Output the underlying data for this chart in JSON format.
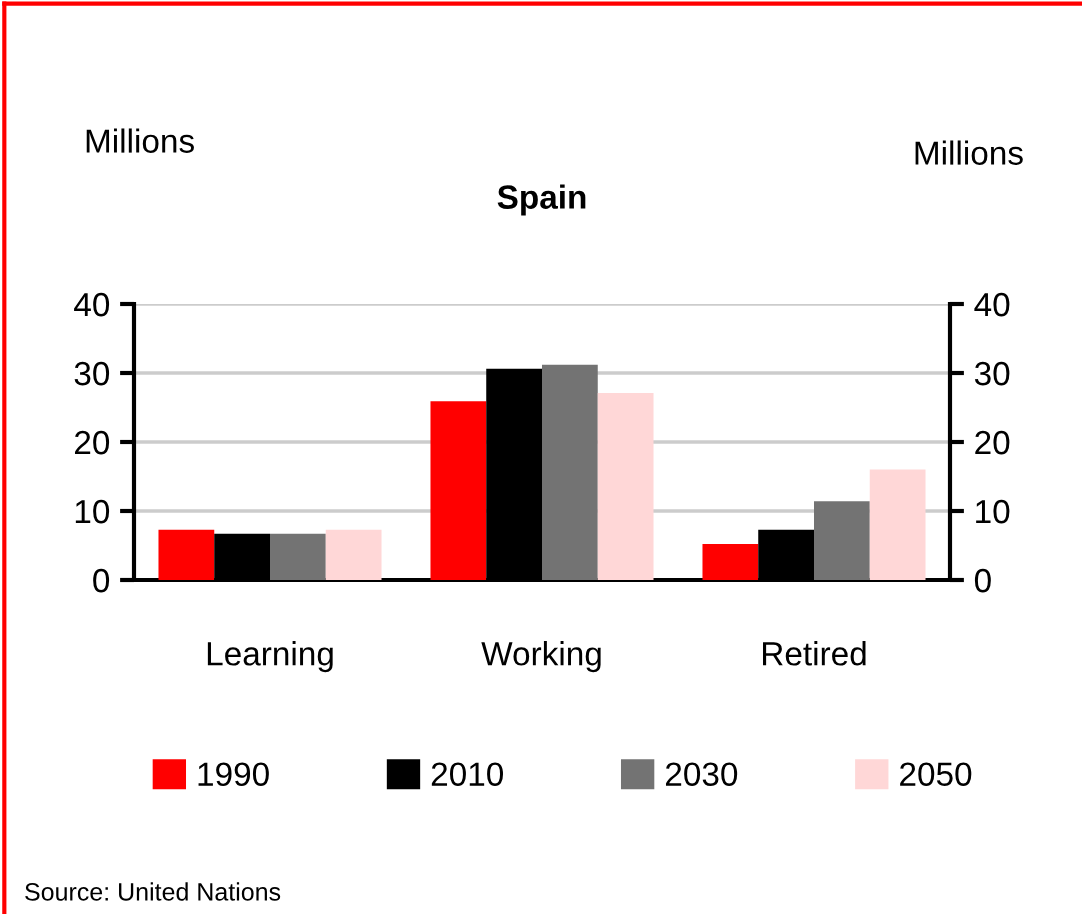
{
  "chart_data": {
    "type": "bar",
    "title": "Spain",
    "ylabel": "Millions",
    "y2label": "Millions",
    "categories": [
      "Learning",
      "Working",
      "Retired"
    ],
    "series": [
      {
        "name": "1990",
        "color": "#ff0000",
        "values": [
          7.3,
          25.9,
          5.2
        ]
      },
      {
        "name": "2010",
        "color": "#000000",
        "values": [
          6.7,
          30.6,
          7.3
        ]
      },
      {
        "name": "2030",
        "color": "#737373",
        "values": [
          6.7,
          31.2,
          11.4
        ]
      },
      {
        "name": "2050",
        "color": "#ffd7d7",
        "values": [
          7.3,
          27.1,
          16.0
        ]
      }
    ],
    "ylim": [
      0,
      40
    ],
    "yticks": [
      0,
      10,
      20,
      30,
      40
    ],
    "y2lim": [
      0,
      40
    ],
    "y2ticks": [
      0,
      10,
      20,
      30,
      40
    ],
    "grid": "y",
    "legend": "bottom",
    "annotations": [
      "Source: United Nations"
    ]
  }
}
